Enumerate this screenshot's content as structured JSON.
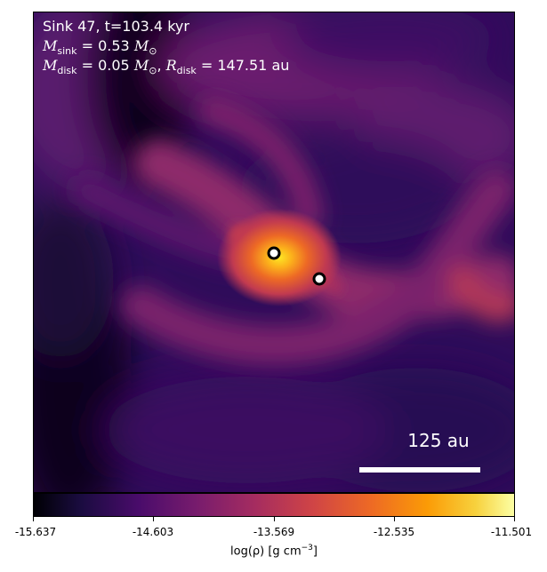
{
  "panel": {
    "sink_label": "Sink 47, t=103.4 kyr",
    "msink_value": "0.53",
    "mdisk_value": "0.05",
    "rdisk_value": "147.51",
    "unit_msun": "M",
    "unit_au": "au"
  },
  "scalebar": {
    "label": "125 au"
  },
  "colorbar": {
    "ticks": [
      "-15.637",
      "-14.603",
      "-13.569",
      "-12.535",
      "-11.501"
    ],
    "label_prefix": "log(ρ) [g cm",
    "label_exp": "−3",
    "label_suffix": "]",
    "colormap": "inferno"
  },
  "colors": {
    "background": "#2a0b52",
    "hot_core": "#fcb11b",
    "text": "#ffffff"
  }
}
